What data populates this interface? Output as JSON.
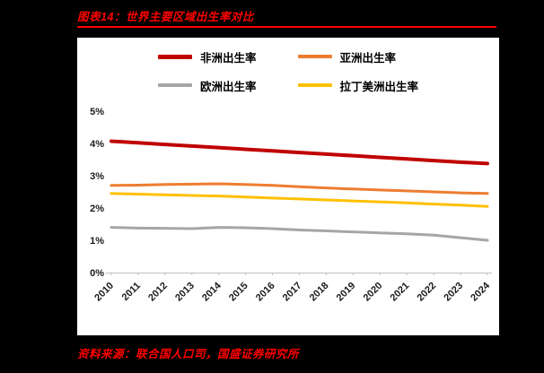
{
  "header": {
    "title": "图表14：世界主要区域出生率对比"
  },
  "footer": {
    "source": "资料来源：联合国人口司，国盛证券研究所"
  },
  "colors": {
    "accent_red": "#ff0000",
    "africa": "#c00000",
    "asia": "#ed7d31",
    "europe": "#a6a6a6",
    "latin_america": "#ffc000",
    "axis": "#bfbfbf",
    "background": "#000000",
    "panel": "#ffffff"
  },
  "chart_data": {
    "type": "line",
    "title": "图表14：世界主要区域出生率对比",
    "x": [
      2010,
      2011,
      2012,
      2013,
      2014,
      2015,
      2016,
      2017,
      2018,
      2019,
      2020,
      2021,
      2022,
      2023,
      2024
    ],
    "series": [
      {
        "name": "非洲出生率",
        "color": "#c00000",
        "values": [
          4.07,
          4.02,
          3.97,
          3.92,
          3.87,
          3.82,
          3.77,
          3.72,
          3.67,
          3.62,
          3.57,
          3.52,
          3.47,
          3.42,
          3.38
        ]
      },
      {
        "name": "亚洲出生率",
        "color": "#ed7d31",
        "values": [
          2.7,
          2.71,
          2.73,
          2.74,
          2.75,
          2.73,
          2.7,
          2.66,
          2.62,
          2.59,
          2.56,
          2.53,
          2.5,
          2.47,
          2.45
        ]
      },
      {
        "name": "欧洲出生率",
        "color": "#a6a6a6",
        "values": [
          1.4,
          1.38,
          1.37,
          1.36,
          1.4,
          1.39,
          1.36,
          1.32,
          1.29,
          1.26,
          1.23,
          1.2,
          1.16,
          1.08,
          1.0
        ]
      },
      {
        "name": "拉丁美洲出生率",
        "color": "#ffc000",
        "values": [
          2.45,
          2.43,
          2.41,
          2.39,
          2.37,
          2.34,
          2.31,
          2.28,
          2.25,
          2.22,
          2.19,
          2.16,
          2.12,
          2.09,
          2.05
        ]
      }
    ],
    "ylim": [
      0,
      5
    ],
    "yticks": [
      "0%",
      "1%",
      "2%",
      "3%",
      "4%",
      "5%"
    ],
    "xlabel": "",
    "ylabel": "",
    "grid": false,
    "legend_position": "top"
  }
}
